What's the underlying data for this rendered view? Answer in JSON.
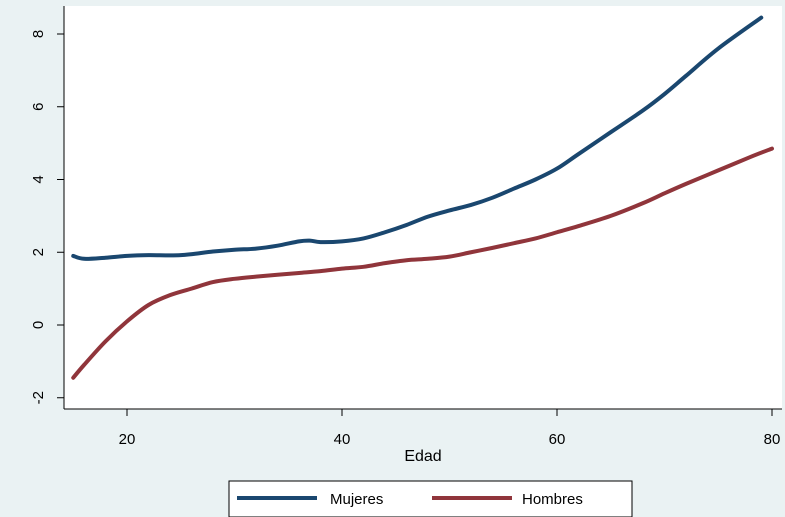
{
  "chart_data": {
    "type": "line",
    "title": "",
    "xlabel": "Edad",
    "ylabel": "",
    "xlim": [
      15,
      80
    ],
    "ylim": [
      -2,
      8
    ],
    "xticks": [
      20,
      40,
      60,
      80
    ],
    "yticks": [
      -2,
      0,
      2,
      4,
      6,
      8
    ],
    "x_tick_labels": [
      "20",
      "40",
      "60",
      "80"
    ],
    "y_tick_labels": [
      "-2",
      "0",
      "2",
      "4",
      "6",
      "8"
    ],
    "grid": false,
    "legend_position": "bottom",
    "series": [
      {
        "name": "Mujeres",
        "color": "#1a476f",
        "points": [
          [
            15,
            1.9
          ],
          [
            16,
            1.82
          ],
          [
            18,
            1.85
          ],
          [
            20,
            1.9
          ],
          [
            22,
            1.92
          ],
          [
            25,
            1.92
          ],
          [
            28,
            2.02
          ],
          [
            30,
            2.07
          ],
          [
            32,
            2.1
          ],
          [
            34,
            2.18
          ],
          [
            36,
            2.3
          ],
          [
            37,
            2.32
          ],
          [
            38,
            2.28
          ],
          [
            40,
            2.3
          ],
          [
            42,
            2.38
          ],
          [
            44,
            2.55
          ],
          [
            46,
            2.75
          ],
          [
            48,
            2.98
          ],
          [
            50,
            3.15
          ],
          [
            52,
            3.3
          ],
          [
            54,
            3.5
          ],
          [
            56,
            3.75
          ],
          [
            58,
            4.0
          ],
          [
            60,
            4.3
          ],
          [
            62,
            4.7
          ],
          [
            65,
            5.3
          ],
          [
            68,
            5.9
          ],
          [
            70,
            6.35
          ],
          [
            72,
            6.85
          ],
          [
            75,
            7.6
          ],
          [
            79,
            8.45
          ]
        ]
      },
      {
        "name": "Hombres",
        "color": "#90353b",
        "points": [
          [
            15,
            -1.45
          ],
          [
            16,
            -1.1
          ],
          [
            18,
            -0.45
          ],
          [
            20,
            0.1
          ],
          [
            22,
            0.55
          ],
          [
            24,
            0.82
          ],
          [
            26,
            1.0
          ],
          [
            28,
            1.18
          ],
          [
            30,
            1.27
          ],
          [
            32,
            1.33
          ],
          [
            34,
            1.38
          ],
          [
            36,
            1.43
          ],
          [
            38,
            1.48
          ],
          [
            40,
            1.55
          ],
          [
            42,
            1.6
          ],
          [
            44,
            1.7
          ],
          [
            46,
            1.78
          ],
          [
            48,
            1.82
          ],
          [
            50,
            1.88
          ],
          [
            52,
            2.0
          ],
          [
            54,
            2.12
          ],
          [
            56,
            2.25
          ],
          [
            58,
            2.38
          ],
          [
            60,
            2.55
          ],
          [
            62,
            2.72
          ],
          [
            65,
            3.0
          ],
          [
            68,
            3.35
          ],
          [
            70,
            3.62
          ],
          [
            72,
            3.88
          ],
          [
            75,
            4.25
          ],
          [
            78,
            4.62
          ],
          [
            80,
            4.85
          ]
        ]
      }
    ]
  }
}
